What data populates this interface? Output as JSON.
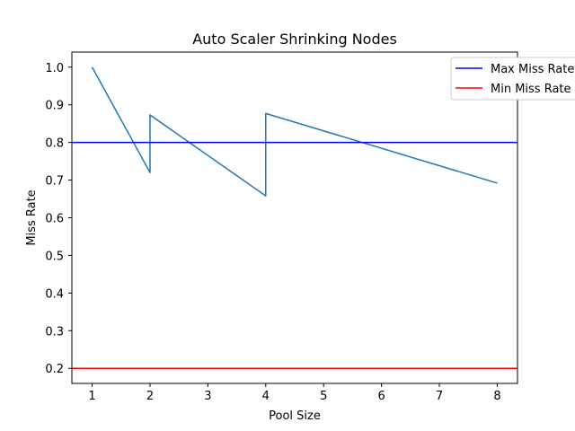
{
  "chart_data": {
    "type": "line",
    "title": "Auto Scaler Shrinking Nodes",
    "xlabel": "Pool Size",
    "ylabel": "Miss Rate",
    "xlim": [
      0.65,
      8.35
    ],
    "ylim": [
      0.16,
      1.04
    ],
    "xticks": [
      1,
      2,
      3,
      4,
      5,
      6,
      7,
      8
    ],
    "yticks": [
      0.2,
      0.3,
      0.4,
      0.5,
      0.6,
      0.7,
      0.8,
      0.9,
      1.0
    ],
    "grid": false,
    "legend_position": "top-right",
    "series": [
      {
        "color": "#1f77b4",
        "x": [
          1,
          2,
          2,
          4,
          4,
          8
        ],
        "y": [
          1.0,
          0.72,
          0.873,
          0.658,
          0.877,
          0.692
        ]
      },
      {
        "name": "Max Miss Rate",
        "kind": "hline",
        "color": "#0000ff",
        "y": 0.8
      },
      {
        "name": "Min Miss Rate",
        "kind": "hline",
        "color": "#ff0000",
        "y": 0.2
      }
    ]
  }
}
